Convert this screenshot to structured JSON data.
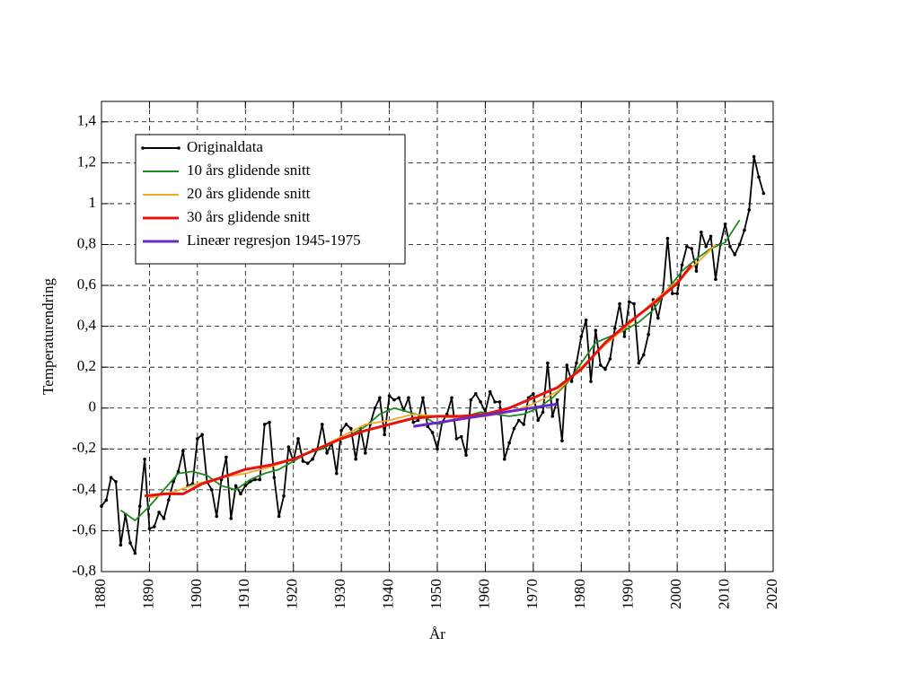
{
  "chart_data": {
    "type": "line",
    "xlabel": "År",
    "ylabel": "Temperaturendring",
    "xlim": [
      1880,
      2020
    ],
    "ylim": [
      -0.8,
      1.5
    ],
    "xticks": [
      1880,
      1890,
      1900,
      1910,
      1920,
      1930,
      1940,
      1950,
      1960,
      1970,
      1980,
      1990,
      2000,
      2010,
      2020
    ],
    "yticks": [
      {
        "value": -0.8,
        "label": "-0,8"
      },
      {
        "value": -0.6,
        "label": "-0,6"
      },
      {
        "value": -0.4,
        "label": "-0,4"
      },
      {
        "value": -0.2,
        "label": "-0,2"
      },
      0,
      {
        "value": 0.2,
        "label": "0,2"
      },
      {
        "value": 0.4,
        "label": "0,4"
      },
      {
        "value": 0.6,
        "label": "0,6"
      },
      {
        "value": 0.8,
        "label": "0,8"
      },
      1,
      {
        "value": 1.2,
        "label": "1,2"
      },
      {
        "value": 1.4,
        "label": "1,4"
      }
    ],
    "grid": true,
    "legend": "upper left",
    "series": [
      {
        "name": "Originaldata",
        "color": "#000000",
        "markers": true,
        "x": [
          1880,
          1881,
          1882,
          1883,
          1884,
          1885,
          1886,
          1887,
          1888,
          1889,
          1890,
          1891,
          1892,
          1893,
          1894,
          1895,
          1896,
          1897,
          1898,
          1899,
          1900,
          1901,
          1902,
          1903,
          1904,
          1905,
          1906,
          1907,
          1908,
          1909,
          1910,
          1911,
          1912,
          1913,
          1914,
          1915,
          1916,
          1917,
          1918,
          1919,
          1920,
          1921,
          1922,
          1923,
          1924,
          1925,
          1926,
          1927,
          1928,
          1929,
          1930,
          1931,
          1932,
          1933,
          1934,
          1935,
          1936,
          1937,
          1938,
          1939,
          1940,
          1941,
          1942,
          1943,
          1944,
          1945,
          1946,
          1947,
          1948,
          1949,
          1950,
          1951,
          1952,
          1953,
          1954,
          1955,
          1956,
          1957,
          1958,
          1959,
          1960,
          1961,
          1962,
          1963,
          1964,
          1965,
          1966,
          1967,
          1968,
          1969,
          1970,
          1971,
          1972,
          1973,
          1974,
          1975,
          1976,
          1977,
          1978,
          1979,
          1980,
          1981,
          1982,
          1983,
          1984,
          1985,
          1986,
          1987,
          1988,
          1989,
          1990,
          1991,
          1992,
          1993,
          1994,
          1995,
          1996,
          1997,
          1998,
          1999,
          2000,
          2001,
          2002,
          2003,
          2004,
          2005,
          2006,
          2007,
          2008,
          2009,
          2010,
          2011,
          2012,
          2013,
          2014,
          2015,
          2016,
          2017,
          2018
        ],
        "values": [
          -0.48,
          -0.45,
          -0.34,
          -0.36,
          -0.67,
          -0.52,
          -0.66,
          -0.71,
          -0.48,
          -0.25,
          -0.59,
          -0.58,
          -0.51,
          -0.54,
          -0.45,
          -0.36,
          -0.31,
          -0.21,
          -0.38,
          -0.37,
          -0.15,
          -0.13,
          -0.36,
          -0.4,
          -0.53,
          -0.35,
          -0.24,
          -0.54,
          -0.38,
          -0.42,
          -0.38,
          -0.36,
          -0.35,
          -0.35,
          -0.08,
          -0.07,
          -0.34,
          -0.53,
          -0.43,
          -0.19,
          -0.26,
          -0.15,
          -0.26,
          -0.27,
          -0.25,
          -0.2,
          -0.08,
          -0.22,
          -0.17,
          -0.32,
          -0.11,
          -0.08,
          -0.1,
          -0.25,
          -0.1,
          -0.22,
          -0.08,
          0.0,
          0.05,
          -0.13,
          0.06,
          0.04,
          0.05,
          -0.01,
          0.05,
          -0.07,
          -0.06,
          0.05,
          -0.09,
          -0.12,
          -0.2,
          -0.07,
          -0.03,
          0.05,
          -0.15,
          -0.14,
          -0.23,
          0.04,
          0.07,
          0.03,
          -0.02,
          0.08,
          0.03,
          0.03,
          -0.25,
          -0.17,
          -0.1,
          -0.06,
          -0.08,
          0.05,
          0.07,
          -0.06,
          -0.02,
          0.22,
          -0.04,
          0.04,
          -0.16,
          0.21,
          0.13,
          0.22,
          0.35,
          0.43,
          0.13,
          0.38,
          0.21,
          0.19,
          0.24,
          0.39,
          0.51,
          0.35,
          0.52,
          0.51,
          0.22,
          0.26,
          0.36,
          0.53,
          0.44,
          0.56,
          0.83,
          0.56,
          0.56,
          0.7,
          0.79,
          0.78,
          0.67,
          0.86,
          0.79,
          0.84,
          0.63,
          0.8,
          0.9,
          0.79,
          0.75,
          0.8,
          0.87,
          0.97,
          1.23,
          1.13,
          1.05
        ]
      },
      {
        "name": "10 års glidende snitt",
        "color": "#1f8a1f",
        "x": [
          1884,
          1887,
          1890,
          1893,
          1896,
          1899,
          1902,
          1905,
          1908,
          1911,
          1914,
          1917,
          1920,
          1923,
          1926,
          1929,
          1932,
          1935,
          1938,
          1941,
          1944,
          1947,
          1950,
          1953,
          1956,
          1959,
          1962,
          1965,
          1968,
          1971,
          1974,
          1977,
          1980,
          1983,
          1986,
          1989,
          1992,
          1995,
          1998,
          2001,
          2004,
          2007,
          2010,
          2013
        ],
        "values": [
          -0.5,
          -0.55,
          -0.48,
          -0.4,
          -0.32,
          -0.31,
          -0.33,
          -0.38,
          -0.4,
          -0.35,
          -0.32,
          -0.3,
          -0.26,
          -0.22,
          -0.2,
          -0.16,
          -0.13,
          -0.09,
          -0.03,
          0.0,
          -0.02,
          -0.04,
          -0.08,
          -0.06,
          -0.04,
          -0.02,
          -0.03,
          -0.04,
          -0.03,
          0.0,
          0.05,
          0.12,
          0.22,
          0.32,
          0.35,
          0.38,
          0.42,
          0.48,
          0.58,
          0.67,
          0.73,
          0.78,
          0.81,
          0.92
        ]
      },
      {
        "name": "20 års glidende snitt",
        "color": "#f5a623",
        "x": [
          1890,
          1895,
          1900,
          1905,
          1910,
          1915,
          1920,
          1925,
          1930,
          1935,
          1940,
          1945,
          1950,
          1955,
          1960,
          1965,
          1970,
          1975,
          1980,
          1985,
          1990,
          1995,
          2000,
          2005,
          2008
        ],
        "values": [
          -0.44,
          -0.41,
          -0.37,
          -0.34,
          -0.32,
          -0.29,
          -0.25,
          -0.2,
          -0.14,
          -0.08,
          -0.06,
          -0.03,
          -0.04,
          -0.05,
          -0.04,
          -0.02,
          0.02,
          0.08,
          0.2,
          0.31,
          0.41,
          0.52,
          0.62,
          0.73,
          0.8
        ]
      },
      {
        "name": "30 års glidende snitt",
        "color": "#e8120c",
        "width": 3,
        "x": [
          1889,
          1893,
          1897,
          1901,
          1905,
          1910,
          1915,
          1920,
          1925,
          1930,
          1935,
          1940,
          1945,
          1950,
          1955,
          1960,
          1965,
          1970,
          1975,
          1980,
          1985,
          1990,
          1995,
          2000,
          2003
        ],
        "values": [
          -0.43,
          -0.42,
          -0.42,
          -0.37,
          -0.34,
          -0.3,
          -0.28,
          -0.25,
          -0.2,
          -0.15,
          -0.11,
          -0.08,
          -0.05,
          -0.04,
          -0.04,
          -0.03,
          0.0,
          0.05,
          0.1,
          0.19,
          0.32,
          0.42,
          0.51,
          0.61,
          0.7
        ]
      },
      {
        "name": "Lineær regresjon 1945-1975",
        "color": "#6a28c8",
        "width": 3,
        "x": [
          1945,
          1975
        ],
        "values": [
          -0.09,
          0.02
        ]
      }
    ]
  }
}
